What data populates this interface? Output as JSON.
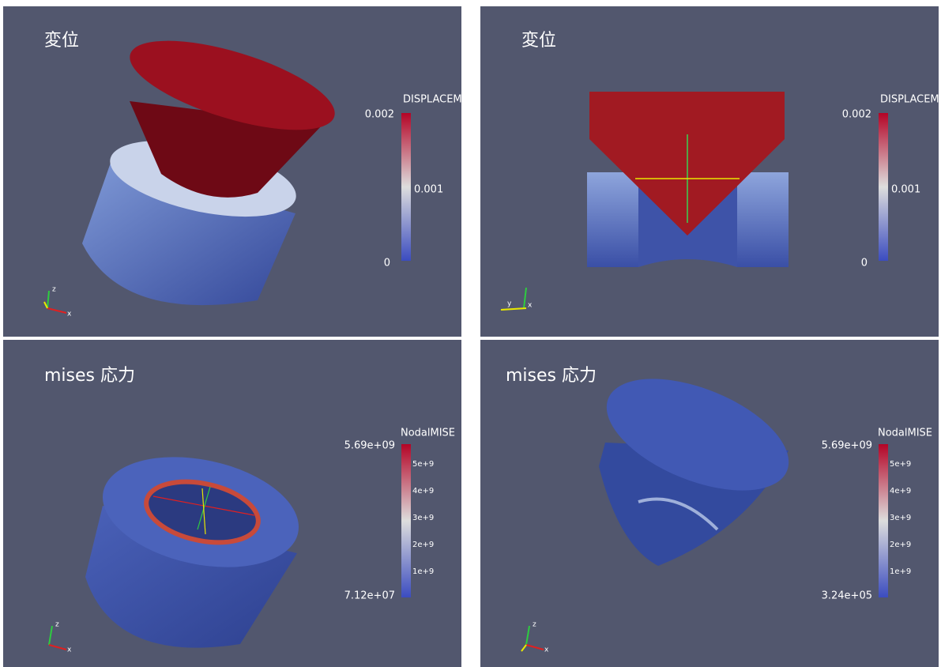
{
  "panels": [
    {
      "title": "変位",
      "legend_title": "DISPLACEM",
      "max_label": "0.002",
      "tick_labels": [
        "0.001"
      ],
      "min_label": "0",
      "axes": [
        "z",
        "x"
      ]
    },
    {
      "title": "変位",
      "legend_title": "DISPLACEM",
      "max_label": "0.002",
      "tick_labels": [
        "0.001"
      ],
      "min_label": "0",
      "axes": [
        "y",
        "x"
      ]
    },
    {
      "title": "mises 応力",
      "legend_title": "NodalMISE",
      "max_label": "5.69e+09",
      "tick_labels": [
        "5e+9",
        "4e+9",
        "3e+9",
        "2e+9",
        "1e+9"
      ],
      "min_label": "7.12e+07",
      "axes": [
        "z",
        "x"
      ]
    },
    {
      "title": "mises 応力",
      "legend_title": "NodalMISE",
      "max_label": "5.69e+09",
      "tick_labels": [
        "5e+9",
        "4e+9",
        "3e+9",
        "2e+9",
        "1e+9"
      ],
      "min_label": "3.24e+05",
      "axes": [
        "z",
        "x"
      ]
    }
  ]
}
